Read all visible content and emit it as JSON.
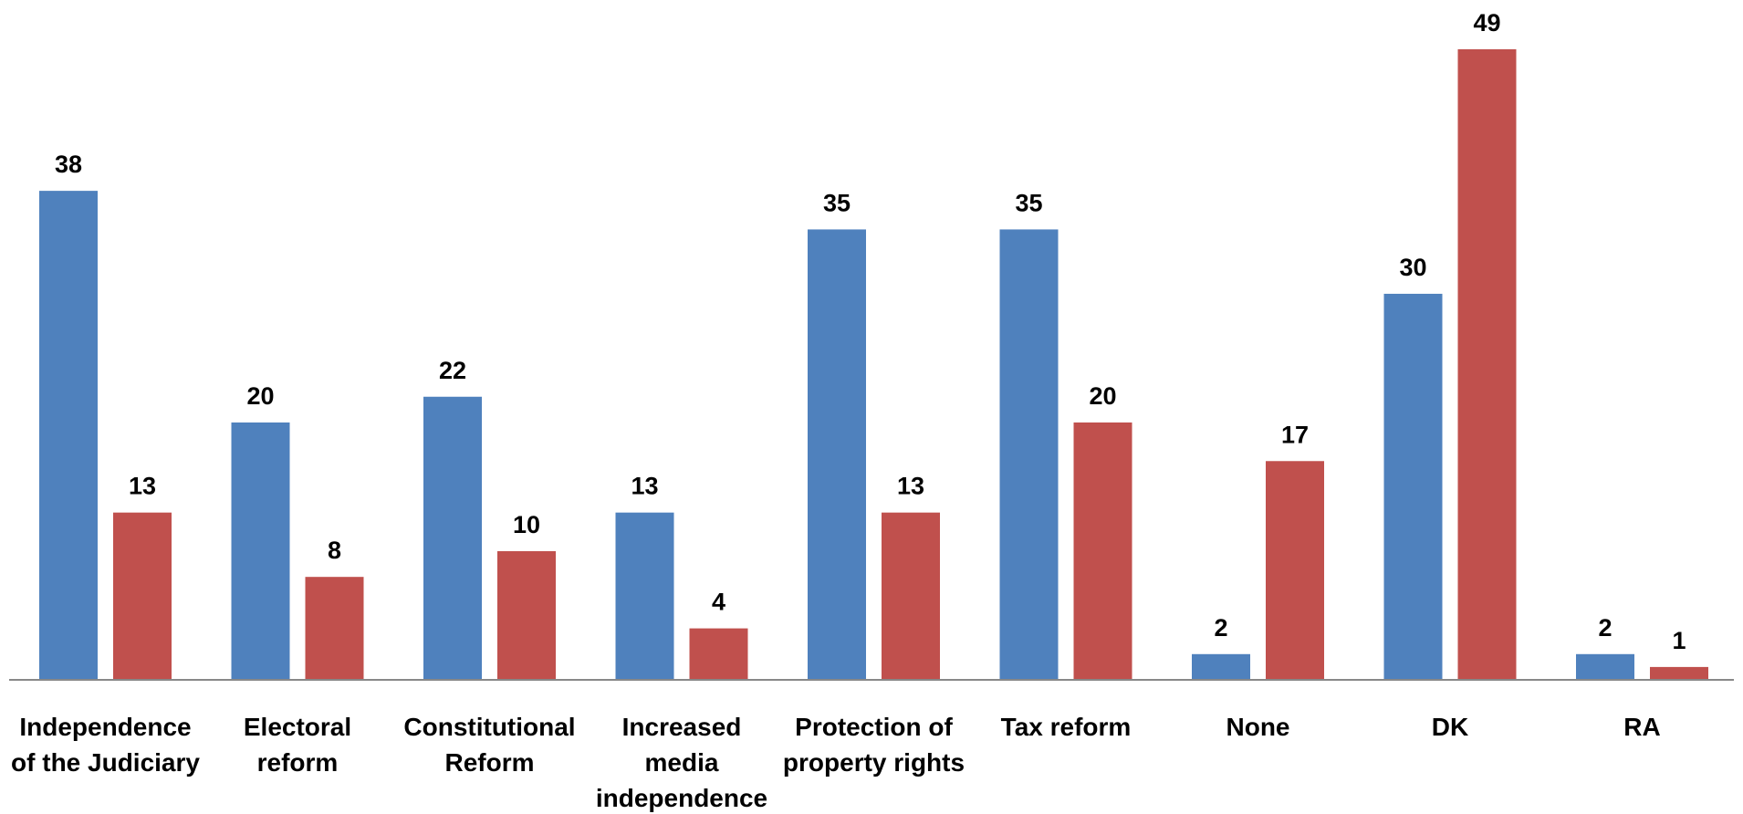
{
  "chart_data": {
    "type": "bar",
    "categories": [
      [
        "Independence",
        "of the Judiciary"
      ],
      [
        "Electoral",
        "reform"
      ],
      [
        "Constitutional",
        "Reform"
      ],
      [
        "Increased",
        "media",
        "independence"
      ],
      [
        "Protection of",
        "property rights"
      ],
      [
        "Tax reform"
      ],
      [
        "None"
      ],
      [
        "DK"
      ],
      [
        "RA"
      ]
    ],
    "series": [
      {
        "color": "#4F81BD",
        "values": [
          38,
          20,
          22,
          13,
          35,
          35,
          2,
          30,
          2
        ]
      },
      {
        "color": "#C0504D",
        "values": [
          13,
          8,
          10,
          4,
          13,
          20,
          17,
          49,
          1
        ]
      }
    ],
    "ylim": [
      0,
      49
    ],
    "grid": false,
    "legend": "none",
    "axis_color": "#888888"
  }
}
